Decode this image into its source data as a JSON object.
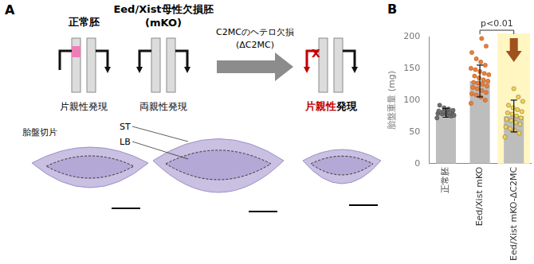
{
  "panel_a": {
    "label": "A",
    "normal": {
      "title": "正常胚",
      "expression": "片親性発現"
    },
    "mko": {
      "title": "Eed/Xist母性欠損胚",
      "subtitle": "(mKO)",
      "expression": "両親性発現"
    },
    "arrow": {
      "lines": [
        "C2MCのヘテロ欠損",
        "(ΔC2MC)"
      ]
    },
    "deletion": {
      "expression_highlight": "片親性",
      "expression_rest": "発現"
    },
    "sections": {
      "label": "胎盤切片",
      "st": "ST",
      "lb": "LB"
    }
  },
  "chart_data": {
    "type": "bar",
    "panel_label": "B",
    "categories": [
      "正常胚",
      "Eed/Xist mKO",
      "Eed/Xist mKO-ΔC2MC"
    ],
    "values": [
      80,
      130,
      75
    ],
    "errors": [
      7,
      25,
      25
    ],
    "points": [
      [
        72,
        75,
        77,
        78,
        79,
        80,
        81,
        82,
        83,
        84,
        86,
        88,
        92,
        76,
        80
      ],
      [
        95,
        100,
        105,
        108,
        110,
        112,
        115,
        118,
        120,
        122,
        125,
        127,
        128,
        130,
        132,
        135,
        138,
        140,
        142,
        145,
        148,
        150,
        155,
        160,
        165,
        175,
        185,
        197
      ],
      [
        42,
        48,
        52,
        55,
        58,
        62,
        65,
        68,
        70,
        72,
        75,
        78,
        80,
        82,
        85,
        88,
        92,
        98,
        105,
        118
      ]
    ],
    "color": "#bdbdbd",
    "ylabel": "胎盤重量 (mg)",
    "ylim": [
      0,
      200
    ],
    "yticks": [
      0,
      50,
      100,
      150,
      200
    ],
    "grid": false,
    "annotations": [
      {
        "text": "p<0.01",
        "between": [
          "Eed/Xist mKO",
          "Eed/Xist mKO-ΔC2MC"
        ]
      }
    ]
  }
}
